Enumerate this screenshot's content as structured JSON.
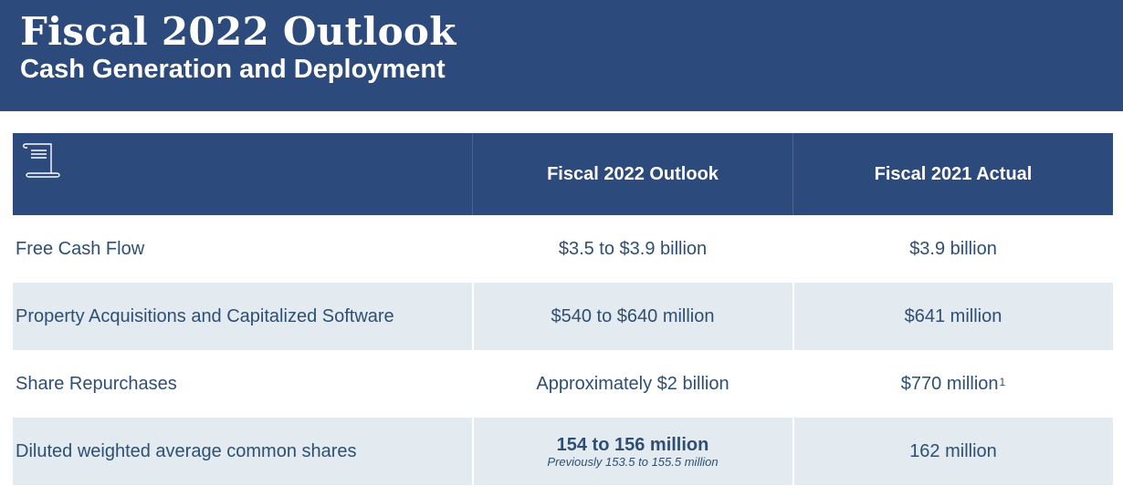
{
  "header": {
    "title": "Fiscal 2022 Outlook",
    "subtitle": "Cash Generation and Deployment"
  },
  "table": {
    "header_icon": "scroll-document-icon",
    "columns": [
      "",
      "Fiscal 2022 Outlook",
      "Fiscal 2021 Actual"
    ],
    "rows": [
      {
        "label": "Free Cash Flow",
        "outlook": "$3.5 to $3.9 billion",
        "actual": "$3.9 billion"
      },
      {
        "label": "Property Acquisitions and Capitalized Software",
        "outlook": "$540 to $640 million",
        "actual": "$641 million"
      },
      {
        "label": "Share Repurchases",
        "outlook": "Approximately $2 billion",
        "actual": "$770 million",
        "actual_footnote": "1"
      },
      {
        "label": "Diluted weighted average common shares",
        "outlook": "154 to 156 million",
        "outlook_note": "Previously 153.5 to 155.5 million",
        "actual": "162 million"
      }
    ]
  },
  "colors": {
    "navy": "#2c4a7c",
    "row_shade": "#e4ebf0",
    "text": "#2e4f73"
  }
}
